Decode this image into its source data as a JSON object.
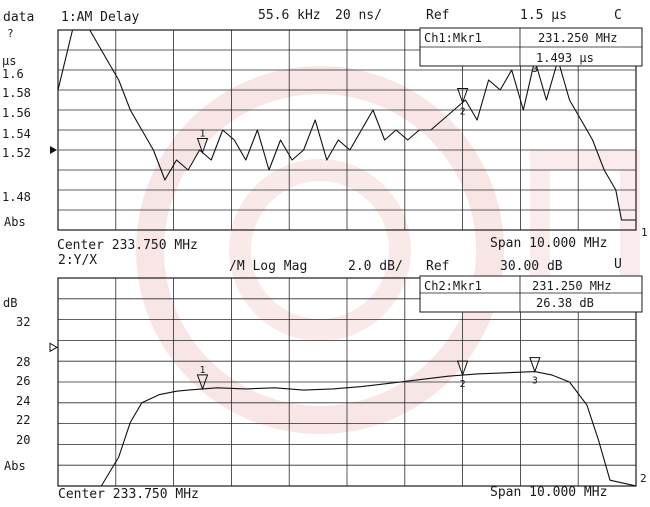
{
  "chart_data": [
    {
      "type": "line",
      "id": "ch1",
      "format_label": "data",
      "format_marker": "?",
      "ylabel": "µs",
      "scale_label": "Abs",
      "header": {
        "channel": "1:AM Delay",
        "aperture": "55.6 kHz",
        "scale": "20 ns/",
        "ref_label": "Ref",
        "ref_value": "1.5 µs",
        "flag": "C"
      },
      "marker_readout": {
        "label": "Ch1:Mkr1",
        "frequency": "231.250 MHz",
        "value": "1.493 µs"
      },
      "yticks": [
        "1.6",
        "1.58",
        "1.56",
        "1.54",
        "1.52",
        "1.48"
      ],
      "ref_level": 1.5,
      "ylim": [
        1.42,
        1.62
      ],
      "xlim": [
        228.75,
        238.75
      ],
      "center_label": "Center 233.750 MHz",
      "span_label": "Span 10.000 MHz",
      "x": [
        228.75,
        229.0,
        229.3,
        229.5,
        229.8,
        230.0,
        230.2,
        230.4,
        230.6,
        230.8,
        231.0,
        231.2,
        231.4,
        231.6,
        231.8,
        232.0,
        232.2,
        232.4,
        232.6,
        232.8,
        233.0,
        233.2,
        233.4,
        233.6,
        233.8,
        234.0,
        234.2,
        234.4,
        234.6,
        234.8,
        235.0,
        235.2,
        235.4,
        235.6,
        235.8,
        236.0,
        236.2,
        236.4,
        236.6,
        236.8,
        237.0,
        237.2,
        237.4,
        237.6,
        237.8,
        238.0,
        238.2,
        238.4,
        238.5,
        238.75
      ],
      "y": [
        1.56,
        1.62,
        1.62,
        1.6,
        1.57,
        1.54,
        1.52,
        1.5,
        1.47,
        1.49,
        1.48,
        1.5,
        1.49,
        1.52,
        1.51,
        1.49,
        1.52,
        1.48,
        1.51,
        1.49,
        1.5,
        1.53,
        1.49,
        1.51,
        1.5,
        1.52,
        1.54,
        1.51,
        1.52,
        1.51,
        1.52,
        1.52,
        1.53,
        1.54,
        1.55,
        1.53,
        1.57,
        1.56,
        1.58,
        1.54,
        1.59,
        1.55,
        1.59,
        1.55,
        1.53,
        1.51,
        1.48,
        1.46,
        1.43,
        1.43
      ],
      "markers": [
        {
          "id": "1",
          "x": 231.25
        },
        {
          "id": "2",
          "x": 235.75
        },
        {
          "id": "3",
          "x": 237.0
        }
      ]
    },
    {
      "type": "line",
      "id": "ch2",
      "ylabel": "dB",
      "scale_label": "Abs",
      "header": {
        "channel": "2:Y/X",
        "format": "/M Log Mag",
        "scale": "2.0 dB/",
        "ref_label": "Ref",
        "ref_value": "30.00 dB",
        "flag": "U"
      },
      "marker_readout": {
        "label": "Ch2:Mkr1",
        "frequency": "231.250 MHz",
        "value": "26.38 dB"
      },
      "yticks": [
        "32",
        "28",
        "26",
        "24",
        "22",
        "20"
      ],
      "ref_level": 30,
      "ylim": [
        18,
        36
      ],
      "xlim": [
        228.75,
        238.75
      ],
      "center_label": "Center 233.750 MHz",
      "span_label": "Span 10.000 MHz",
      "x": [
        228.75,
        229.5,
        229.8,
        230.0,
        230.2,
        230.5,
        230.8,
        231.0,
        231.5,
        232.0,
        232.5,
        233.0,
        233.5,
        234.0,
        234.5,
        235.0,
        235.5,
        236.0,
        236.5,
        237.0,
        237.3,
        237.6,
        237.9,
        238.1,
        238.3,
        238.75
      ],
      "y": [
        18.0,
        18.0,
        20.5,
        23.5,
        25.2,
        25.9,
        26.2,
        26.3,
        26.5,
        26.4,
        26.5,
        26.3,
        26.4,
        26.6,
        26.9,
        27.2,
        27.5,
        27.7,
        27.8,
        27.9,
        27.6,
        27.0,
        25.0,
        22.0,
        18.5,
        18.0
      ],
      "markers": [
        {
          "id": "1",
          "x": 231.25
        },
        {
          "id": "2",
          "x": 235.75
        },
        {
          "id": "3",
          "x": 237.0
        }
      ]
    }
  ],
  "end_markers": [
    "1",
    "2"
  ]
}
